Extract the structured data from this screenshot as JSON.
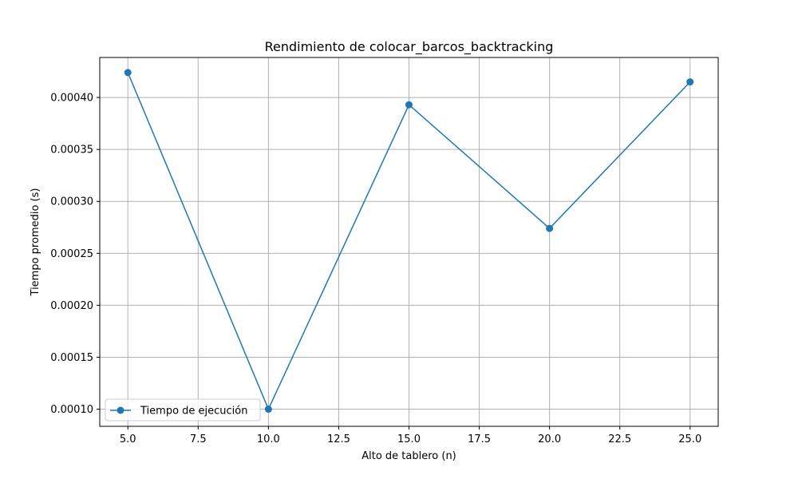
{
  "chart_data": {
    "type": "line",
    "title": "Rendimiento de colocar_barcos_backtracking",
    "xlabel": "Alto de tablero (n)",
    "ylabel": "Tiempo promedio (s)",
    "xlim": [
      4.0,
      26.0
    ],
    "ylim": [
      8.35e-05,
      0.0004385
    ],
    "x_ticks": [
      5.0,
      7.5,
      10.0,
      12.5,
      15.0,
      17.5,
      20.0,
      22.5,
      25.0
    ],
    "x_tick_labels": [
      "5.0",
      "7.5",
      "10.0",
      "12.5",
      "15.0",
      "17.5",
      "20.0",
      "22.5",
      "25.0"
    ],
    "y_ticks": [
      0.0001,
      0.00015,
      0.0002,
      0.00025,
      0.0003,
      0.00035,
      0.0004
    ],
    "y_tick_labels": [
      "0.00010",
      "0.00015",
      "0.00020",
      "0.00025",
      "0.00030",
      "0.00035",
      "0.00040"
    ],
    "grid": true,
    "legend_position": "lower-left",
    "series": [
      {
        "name": "Tiempo de ejecución",
        "color": "#1f77b4",
        "marker": "circle",
        "x": [
          5,
          10,
          15,
          20,
          25
        ],
        "y": [
          0.000424,
          0.0001,
          0.000393,
          0.000274,
          0.000415
        ]
      }
    ]
  }
}
